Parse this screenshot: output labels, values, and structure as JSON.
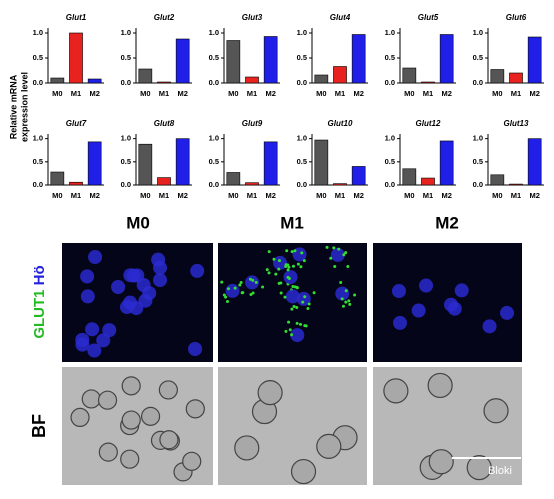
{
  "chart_data": [
    {
      "type": "bar",
      "title": "Glut1",
      "categories": [
        "M0",
        "M1",
        "M2"
      ],
      "values": [
        0.1,
        1.0,
        0.08
      ],
      "colors": [
        "#555555",
        "#e8231f",
        "#1f1fe8"
      ],
      "ylim": [
        0,
        1.1
      ],
      "yticks": [
        {
          "value": 0,
          "label": "0.0"
        },
        0.5,
        {
          "value": 1,
          "label": "1.0"
        }
      ]
    },
    {
      "type": "bar",
      "title": "Glut2",
      "categories": [
        "M0",
        "M1",
        "M2"
      ],
      "values": [
        0.28,
        0.02,
        0.88
      ],
      "colors": [
        "#555555",
        "#e8231f",
        "#1f1fe8"
      ],
      "ylim": [
        0,
        1.1
      ],
      "yticks": [
        {
          "value": 0,
          "label": "0.0"
        },
        0.5,
        {
          "value": 1,
          "label": "1.0"
        }
      ]
    },
    {
      "type": "bar",
      "title": "Glut3",
      "categories": [
        "M0",
        "M1",
        "M2"
      ],
      "values": [
        0.85,
        0.12,
        0.93
      ],
      "colors": [
        "#555555",
        "#e8231f",
        "#1f1fe8"
      ],
      "ylim": [
        0,
        1.1
      ],
      "yticks": [
        {
          "value": 0,
          "label": "0.0"
        },
        0.5,
        {
          "value": 1,
          "label": "1.0"
        }
      ]
    },
    {
      "type": "bar",
      "title": "Glut4",
      "categories": [
        "M0",
        "M1",
        "M2"
      ],
      "values": [
        0.16,
        0.33,
        0.97
      ],
      "colors": [
        "#555555",
        "#e8231f",
        "#1f1fe8"
      ],
      "ylim": [
        0,
        1.1
      ],
      "yticks": [
        {
          "value": 0,
          "label": "0.0"
        },
        0.5,
        {
          "value": 1,
          "label": "1.0"
        }
      ]
    },
    {
      "type": "bar",
      "title": "Glut5",
      "categories": [
        "M0",
        "M1",
        "M2"
      ],
      "values": [
        0.3,
        0.02,
        0.97
      ],
      "colors": [
        "#555555",
        "#e8231f",
        "#1f1fe8"
      ],
      "ylim": [
        0,
        1.1
      ],
      "yticks": [
        {
          "value": 0,
          "label": "0.0"
        },
        0.5,
        {
          "value": 1,
          "label": "1.0"
        }
      ]
    },
    {
      "type": "bar",
      "title": "Glut6",
      "categories": [
        "M0",
        "M1",
        "M2"
      ],
      "values": [
        0.27,
        0.2,
        0.92
      ],
      "colors": [
        "#555555",
        "#e8231f",
        "#1f1fe8"
      ],
      "ylim": [
        0,
        1.1
      ],
      "yticks": [
        {
          "value": 0,
          "label": "0.0"
        },
        0.5,
        {
          "value": 1,
          "label": "1.0"
        }
      ]
    },
    {
      "type": "bar",
      "title": "Glut7",
      "categories": [
        "M0",
        "M1",
        "M2"
      ],
      "values": [
        0.28,
        0.06,
        0.93
      ],
      "colors": [
        "#555555",
        "#e8231f",
        "#1f1fe8"
      ],
      "ylim": [
        0,
        1.1
      ],
      "yticks": [
        {
          "value": 0,
          "label": "0.0"
        },
        0.5,
        {
          "value": 1,
          "label": "1.0"
        }
      ]
    },
    {
      "type": "bar",
      "title": "Glut8",
      "categories": [
        "M0",
        "M1",
        "M2"
      ],
      "values": [
        0.88,
        0.16,
        1.0
      ],
      "colors": [
        "#555555",
        "#e8231f",
        "#1f1fe8"
      ],
      "ylim": [
        0,
        1.1
      ],
      "yticks": [
        {
          "value": 0,
          "label": "0.0"
        },
        0.5,
        {
          "value": 1,
          "label": "1.0"
        }
      ]
    },
    {
      "type": "bar",
      "title": "Glut9",
      "categories": [
        "M0",
        "M1",
        "M2"
      ],
      "values": [
        0.27,
        0.05,
        0.93
      ],
      "colors": [
        "#555555",
        "#e8231f",
        "#1f1fe8"
      ],
      "ylim": [
        0,
        1.1
      ],
      "yticks": [
        {
          "value": 0,
          "label": "0.0"
        },
        0.5,
        {
          "value": 1,
          "label": "1.0"
        }
      ]
    },
    {
      "type": "bar",
      "title": "Glut10",
      "categories": [
        "M0",
        "M1",
        "M2"
      ],
      "values": [
        0.97,
        0.03,
        0.4
      ],
      "colors": [
        "#555555",
        "#e8231f",
        "#1f1fe8"
      ],
      "ylim": [
        0,
        1.1
      ],
      "yticks": [
        {
          "value": 0,
          "label": "0.0"
        },
        0.5,
        {
          "value": 1,
          "label": "1.0"
        }
      ]
    },
    {
      "type": "bar",
      "title": "Glut12",
      "categories": [
        "M0",
        "M1",
        "M2"
      ],
      "values": [
        0.35,
        0.15,
        0.95
      ],
      "colors": [
        "#555555",
        "#e8231f",
        "#1f1fe8"
      ],
      "ylim": [
        0,
        1.1
      ],
      "yticks": [
        {
          "value": 0,
          "label": "0.0"
        },
        0.5,
        {
          "value": 1,
          "label": "1.0"
        }
      ]
    },
    {
      "type": "bar",
      "title": "Glut13",
      "categories": [
        "M0",
        "M1",
        "M2"
      ],
      "values": [
        0.22,
        0.02,
        1.0
      ],
      "colors": [
        "#555555",
        "#e8231f",
        "#1f1fe8"
      ],
      "ylim": [
        0,
        1.1
      ],
      "yticks": [
        {
          "value": 0,
          "label": "0.0"
        },
        0.5,
        {
          "value": 1,
          "label": "1.0"
        }
      ]
    }
  ],
  "shared_ylabel": [
    "Relative mRNA",
    "expression level"
  ],
  "image_panels": {
    "columns": [
      "M0",
      "M1",
      "M2"
    ],
    "stain_label": "GLUT1",
    "nuclear_label": "Hö",
    "bf_label": "BF",
    "watermark": "Bloki"
  }
}
